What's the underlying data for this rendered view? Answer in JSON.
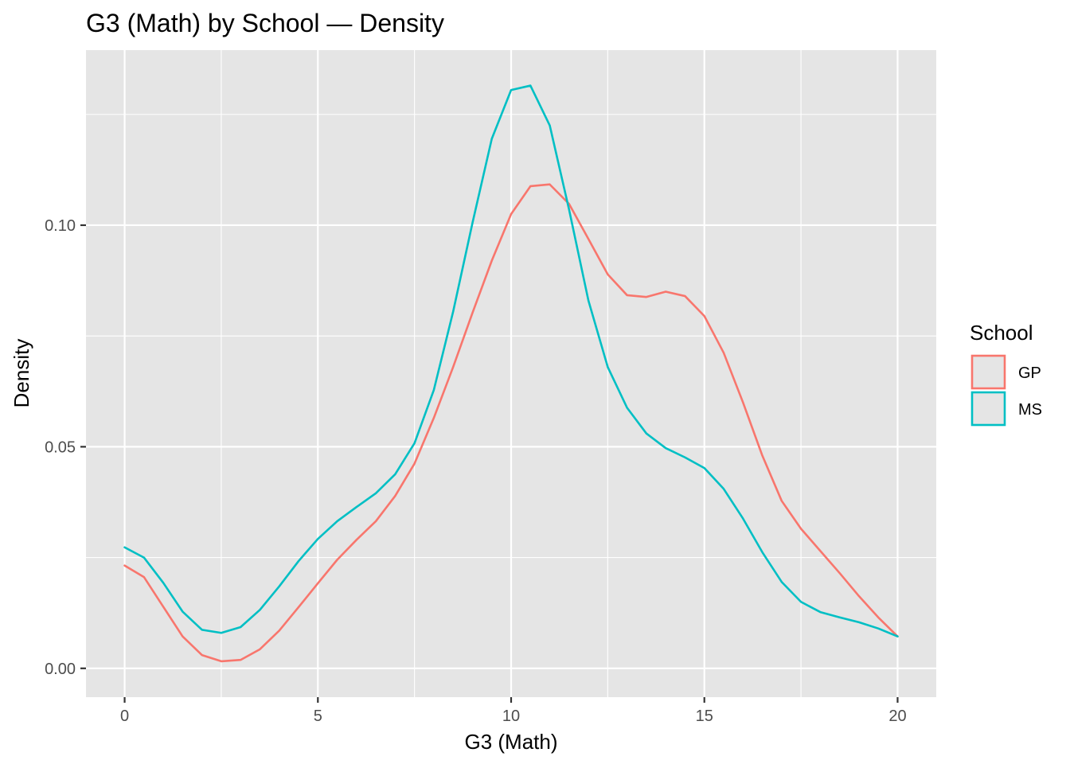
{
  "chart_data": {
    "type": "line",
    "title": "G3 (Math) by School — Density",
    "xlabel": "G3 (Math)",
    "ylabel": "Density",
    "xlim": [
      -1,
      21
    ],
    "ylim": [
      -0.0065,
      0.1395
    ],
    "x_ticks": [
      0,
      5,
      10,
      15,
      20
    ],
    "x_tick_labels": [
      "0",
      "5",
      "10",
      "15",
      "20"
    ],
    "y_ticks": [
      0.0,
      0.05,
      0.1
    ],
    "y_tick_labels": [
      "0.00",
      "0.05",
      "0.10"
    ],
    "grid": true,
    "panel_background": "#E5E5E5",
    "grid_color": "#FFFFFF",
    "legend": {
      "title": "School",
      "placement": "right",
      "entries": [
        "GP",
        "MS"
      ]
    },
    "series": [
      {
        "name": "GP",
        "color": "#F8766D",
        "x": [
          0,
          0.5,
          1,
          1.5,
          2,
          2.5,
          3,
          3.5,
          4,
          4.5,
          5,
          5.5,
          6,
          6.5,
          7,
          7.5,
          8,
          8.5,
          9,
          9.5,
          10,
          10.5,
          11,
          11.5,
          12,
          12.5,
          13,
          13.5,
          14,
          14.5,
          15,
          15.5,
          16,
          16.5,
          17,
          17.5,
          18,
          18.5,
          19,
          19.5,
          20
        ],
        "y": [
          0.0232,
          0.0206,
          0.0139,
          0.0072,
          0.003,
          0.0016,
          0.0019,
          0.0043,
          0.0085,
          0.0138,
          0.0192,
          0.0245,
          0.029,
          0.0332,
          0.0389,
          0.0462,
          0.0565,
          0.068,
          0.0802,
          0.092,
          0.1025,
          0.1088,
          0.1092,
          0.1048,
          0.0969,
          0.0889,
          0.0842,
          0.0838,
          0.085,
          0.084,
          0.0795,
          0.0712,
          0.06,
          0.048,
          0.0378,
          0.0315,
          0.0265,
          0.0215,
          0.0163,
          0.0115,
          0.0072
        ]
      },
      {
        "name": "MS",
        "color": "#00BFC4",
        "x": [
          0,
          0.5,
          1,
          1.5,
          2,
          2.5,
          3,
          3.5,
          4,
          4.5,
          5,
          5.5,
          6,
          6.5,
          7,
          7.5,
          8,
          8.5,
          9,
          9.5,
          10,
          10.5,
          11,
          11.5,
          12,
          12.5,
          13,
          13.5,
          14,
          14.5,
          15,
          15.5,
          16,
          16.5,
          17,
          17.5,
          18,
          18.5,
          19,
          19.5,
          20
        ],
        "y": [
          0.0273,
          0.025,
          0.0193,
          0.0128,
          0.0087,
          0.008,
          0.0093,
          0.0132,
          0.0185,
          0.0242,
          0.0292,
          0.0332,
          0.0364,
          0.0395,
          0.0438,
          0.0508,
          0.0628,
          0.0805,
          0.1005,
          0.1195,
          0.1305,
          0.1315,
          0.1225,
          0.1035,
          0.083,
          0.068,
          0.0588,
          0.053,
          0.0497,
          0.0476,
          0.0452,
          0.0405,
          0.0338,
          0.0262,
          0.0195,
          0.015,
          0.0127,
          0.0115,
          0.0104,
          0.009,
          0.0072
        ]
      }
    ]
  }
}
